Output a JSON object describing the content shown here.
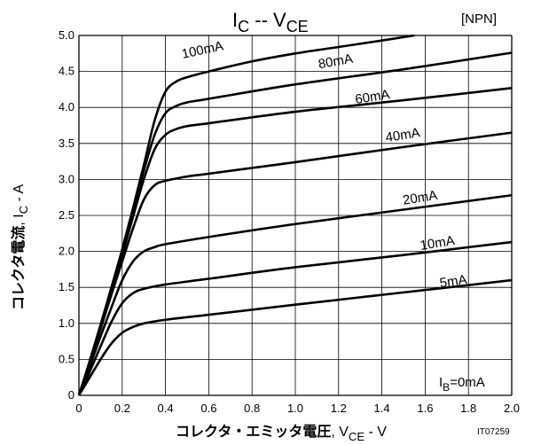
{
  "chart_data": {
    "type": "line",
    "title": "IC -- VCE",
    "title_parts": {
      "main1": "I",
      "sub1": "C",
      "sep": " -- V",
      "sub2": "CE"
    },
    "tag": "[NPN]",
    "xlabel": {
      "jp": "コレクタ・エミッタ電圧",
      "sym": ", V",
      "sub": "CE",
      "unit": " - V"
    },
    "ylabel": {
      "jp": "コレクタ電流",
      "sym": ", I",
      "sub": "C",
      "unit": " - A"
    },
    "code": "IT07259",
    "xlim": [
      0,
      2.0
    ],
    "ylim": [
      0,
      5.0
    ],
    "x_ticks": [
      "0",
      "0.2",
      "0.4",
      "0.6",
      "0.8",
      "1.0",
      "1.2",
      "1.4",
      "1.6",
      "1.8",
      "2.0"
    ],
    "y_ticks": [
      "0",
      "0.5",
      "1.0",
      "1.5",
      "2.0",
      "2.5",
      "3.0",
      "3.5",
      "4.0",
      "4.5",
      "5.0"
    ],
    "grid": true,
    "ib_label": {
      "main": "I",
      "sub": "B",
      "rest": "=0mA"
    },
    "series": [
      {
        "name": "5mA",
        "points": [
          [
            0,
            0
          ],
          [
            0.05,
            0.25
          ],
          [
            0.1,
            0.5
          ],
          [
            0.15,
            0.72
          ],
          [
            0.2,
            0.87
          ],
          [
            0.25,
            0.95
          ],
          [
            0.3,
            1.0
          ],
          [
            0.4,
            1.05
          ],
          [
            0.6,
            1.12
          ],
          [
            1.0,
            1.26
          ],
          [
            1.5,
            1.43
          ],
          [
            2.0,
            1.6
          ]
        ]
      },
      {
        "name": "10mA",
        "points": [
          [
            0,
            0
          ],
          [
            0.05,
            0.33
          ],
          [
            0.1,
            0.68
          ],
          [
            0.15,
            1.02
          ],
          [
            0.2,
            1.28
          ],
          [
            0.25,
            1.42
          ],
          [
            0.3,
            1.48
          ],
          [
            0.4,
            1.54
          ],
          [
            0.6,
            1.62
          ],
          [
            1.0,
            1.78
          ],
          [
            1.5,
            1.95
          ],
          [
            2.0,
            2.13
          ]
        ]
      },
      {
        "name": "20mA",
        "points": [
          [
            0,
            0
          ],
          [
            0.05,
            0.4
          ],
          [
            0.1,
            0.82
          ],
          [
            0.15,
            1.22
          ],
          [
            0.2,
            1.6
          ],
          [
            0.25,
            1.86
          ],
          [
            0.3,
            2.0
          ],
          [
            0.35,
            2.06
          ],
          [
            0.4,
            2.1
          ],
          [
            0.6,
            2.2
          ],
          [
            1.0,
            2.38
          ],
          [
            1.5,
            2.58
          ],
          [
            2.0,
            2.78
          ]
        ]
      },
      {
        "name": "40mA",
        "points": [
          [
            0,
            0
          ],
          [
            0.05,
            0.45
          ],
          [
            0.1,
            0.92
          ],
          [
            0.15,
            1.4
          ],
          [
            0.2,
            1.86
          ],
          [
            0.25,
            2.32
          ],
          [
            0.3,
            2.72
          ],
          [
            0.35,
            2.92
          ],
          [
            0.4,
            2.98
          ],
          [
            0.5,
            3.04
          ],
          [
            0.6,
            3.08
          ],
          [
            1.0,
            3.24
          ],
          [
            1.5,
            3.45
          ],
          [
            2.0,
            3.65
          ]
        ]
      },
      {
        "name": "60mA",
        "points": [
          [
            0,
            0
          ],
          [
            0.05,
            0.46
          ],
          [
            0.1,
            0.95
          ],
          [
            0.15,
            1.45
          ],
          [
            0.2,
            1.95
          ],
          [
            0.25,
            2.48
          ],
          [
            0.3,
            3.0
          ],
          [
            0.35,
            3.42
          ],
          [
            0.4,
            3.62
          ],
          [
            0.45,
            3.7
          ],
          [
            0.5,
            3.74
          ],
          [
            0.6,
            3.78
          ],
          [
            1.0,
            3.94
          ],
          [
            1.5,
            4.1
          ],
          [
            2.0,
            4.27
          ]
        ]
      },
      {
        "name": "80mA",
        "points": [
          [
            0,
            0
          ],
          [
            0.05,
            0.47
          ],
          [
            0.1,
            0.97
          ],
          [
            0.15,
            1.48
          ],
          [
            0.2,
            2.0
          ],
          [
            0.25,
            2.55
          ],
          [
            0.3,
            3.12
          ],
          [
            0.35,
            3.62
          ],
          [
            0.4,
            3.92
          ],
          [
            0.45,
            4.02
          ],
          [
            0.5,
            4.07
          ],
          [
            0.6,
            4.12
          ],
          [
            1.0,
            4.32
          ],
          [
            1.5,
            4.53
          ],
          [
            2.0,
            4.76
          ]
        ]
      },
      {
        "name": "100mA",
        "points": [
          [
            0,
            0
          ],
          [
            0.05,
            0.48
          ],
          [
            0.1,
            0.98
          ],
          [
            0.15,
            1.5
          ],
          [
            0.2,
            2.03
          ],
          [
            0.25,
            2.6
          ],
          [
            0.3,
            3.2
          ],
          [
            0.35,
            3.82
          ],
          [
            0.4,
            4.22
          ],
          [
            0.45,
            4.36
          ],
          [
            0.5,
            4.42
          ],
          [
            0.6,
            4.5
          ],
          [
            0.8,
            4.64
          ],
          [
            1.0,
            4.75
          ],
          [
            1.2,
            4.84
          ],
          [
            1.4,
            4.93
          ],
          [
            1.55,
            5.0
          ]
        ]
      }
    ],
    "curve_labels": [
      {
        "text": "100mA",
        "x": 0.48,
        "y": 4.68,
        "angle": -12
      },
      {
        "text": "80mA",
        "x": 1.11,
        "y": 4.54,
        "angle": -10
      },
      {
        "text": "60mA",
        "x": 1.28,
        "y": 4.05,
        "angle": -9
      },
      {
        "text": "40mA",
        "x": 1.42,
        "y": 3.52,
        "angle": -9
      },
      {
        "text": "20mA",
        "x": 1.5,
        "y": 2.65,
        "angle": -9
      },
      {
        "text": "10mA",
        "x": 1.58,
        "y": 2.02,
        "angle": -9
      },
      {
        "text": "5mA",
        "x": 1.67,
        "y": 1.5,
        "angle": -8
      }
    ]
  }
}
